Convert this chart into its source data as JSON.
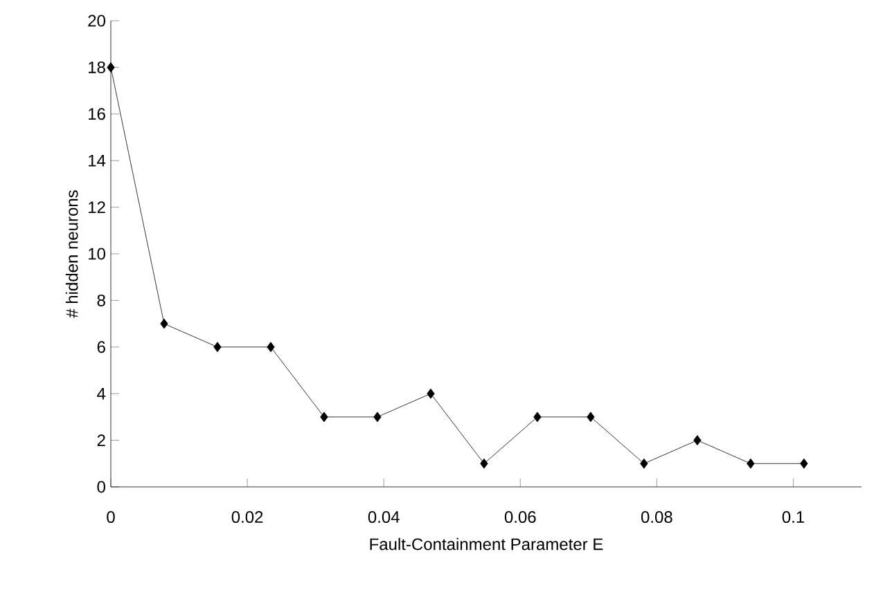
{
  "chart_data": {
    "type": "line",
    "xlabel": "Fault-Containment Parameter E",
    "ylabel": "# hidden neurons",
    "x": [
      0,
      0.0078125,
      0.015625,
      0.0234375,
      0.03125,
      0.0390625,
      0.046875,
      0.0546875,
      0.0625,
      0.0703125,
      0.078125,
      0.0859375,
      0.09375,
      0.1015625
    ],
    "series": [
      {
        "color": "#000000",
        "values": [
          18,
          7,
          6,
          6,
          3,
          3,
          4,
          1,
          3,
          3,
          1,
          2,
          1,
          1
        ]
      }
    ],
    "xlim": [
      0,
      0.11
    ],
    "ylim": [
      0,
      20
    ],
    "xticks": [
      0,
      0.02,
      0.04,
      0.06,
      0.08,
      0.1
    ],
    "yticks": [
      0,
      2,
      4,
      6,
      8,
      10,
      12,
      14,
      16,
      18,
      20
    ],
    "marker": "diamond",
    "line_style": "solid",
    "grid": false
  }
}
